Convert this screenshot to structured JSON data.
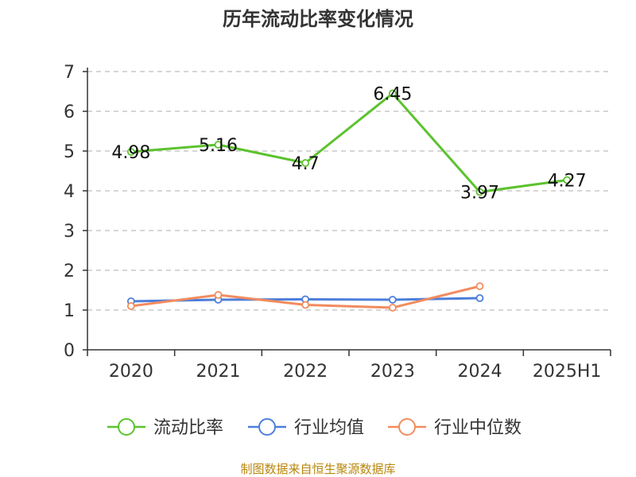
{
  "chart_data": {
    "type": "line",
    "title": "历年流动比率变化情况",
    "categories": [
      "2020",
      "2021",
      "2022",
      "2023",
      "2024",
      "2025H1"
    ],
    "ylim": [
      0,
      7
    ],
    "yticks": [
      "0",
      "1",
      "2",
      "3",
      "4",
      "5",
      "6",
      "7"
    ],
    "grid": true,
    "legend_position": "bottom",
    "series": [
      {
        "name": "流动比率",
        "color": "#5cc22e",
        "values": [
          4.98,
          5.16,
          4.7,
          6.45,
          3.97,
          4.27
        ],
        "labels": [
          "4.98",
          "5.16",
          "4.7",
          "6.45",
          "3.97",
          "4.27"
        ]
      },
      {
        "name": "行业均值",
        "color": "#4d7edb",
        "values": [
          1.22,
          1.26,
          1.27,
          1.26,
          1.3,
          null
        ]
      },
      {
        "name": "行业中位数",
        "color": "#f28c5e",
        "values": [
          1.1,
          1.38,
          1.13,
          1.06,
          1.6,
          null
        ]
      }
    ]
  },
  "source": "制图数据来自恒生聚源数据库"
}
